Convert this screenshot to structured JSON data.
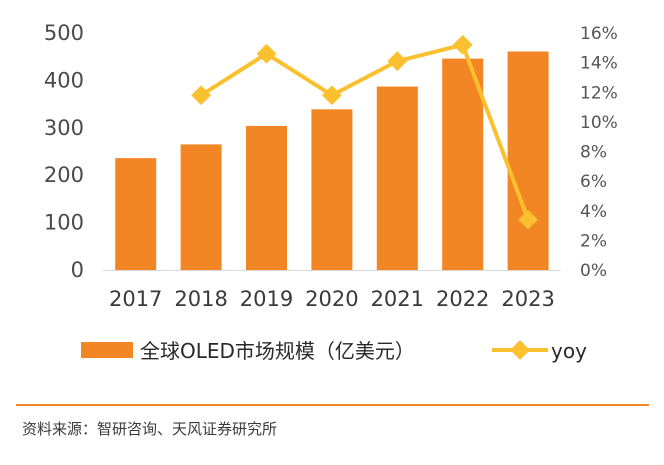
{
  "chart_data": {
    "type": "bar",
    "categories": [
      "2017",
      "2018",
      "2019",
      "2020",
      "2021",
      "2022",
      "2023"
    ],
    "series": [
      {
        "name": "全球OLED市场规模（亿美元）",
        "type": "bar",
        "axis": "left",
        "color": "#F28524",
        "values": [
          236,
          265,
          304,
          339,
          387,
          446,
          461
        ]
      },
      {
        "name": "yoy",
        "type": "line",
        "axis": "right",
        "color": "#FBC02D",
        "values": [
          null,
          11.8,
          14.6,
          11.8,
          14.1,
          15.2,
          3.4
        ]
      }
    ],
    "y_left": {
      "min": 0,
      "max": 500,
      "ticks": [
        "0",
        "100",
        "200",
        "300",
        "400",
        "500"
      ]
    },
    "y_right": {
      "min": 0,
      "max": 16,
      "ticks": [
        "0%",
        "2%",
        "4%",
        "6%",
        "8%",
        "10%",
        "12%",
        "14%",
        "16%"
      ]
    },
    "grid": false,
    "legend_position": "bottom"
  },
  "legend": {
    "bar_label": "全球OLED市场规模（亿美元）",
    "line_label": "yoy"
  },
  "source": "资料来源：智研咨询、天风证券研究所",
  "colors": {
    "bar": "#F28524",
    "line": "#FBC02D",
    "divider": "#F28524",
    "axis": "#d9d9d9"
  }
}
